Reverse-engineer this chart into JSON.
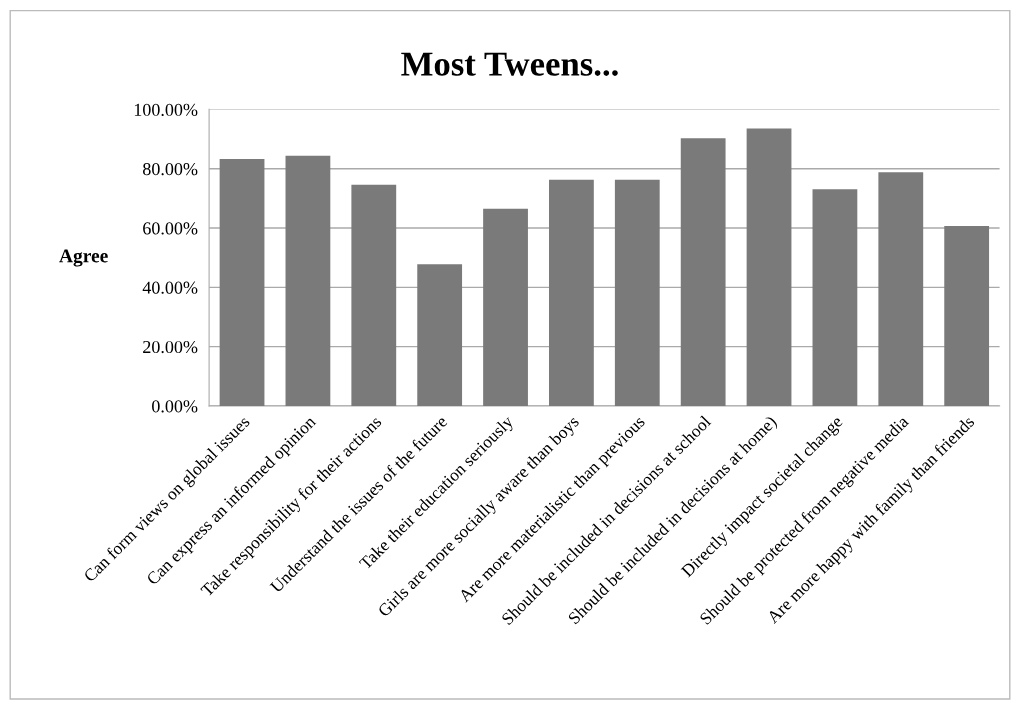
{
  "chart_data": {
    "type": "bar",
    "title": "Most Tweens...",
    "ylabel": "Agree",
    "categories": [
      "Can form views on global issues",
      "Can express an informed opinion",
      "Take responsibility for their actions",
      "Understand the issues of the future",
      "Take their education seriously",
      "Girls are more socially aware than boys",
      "Are more materialistic than previous",
      "Should be included in decisions at school",
      "Should be included in decisions at home)",
      "Directly impact societal change",
      "Should be protected from negative media",
      "Are more happy with family than friends"
    ],
    "values": [
      83.3,
      84.4,
      74.6,
      47.8,
      66.5,
      76.3,
      76.3,
      90.3,
      93.6,
      73.1,
      78.8,
      60.7
    ],
    "color": "#7a7a7a",
    "ylim": [
      0,
      100
    ],
    "yticks": [
      {
        "value": 0,
        "label": "0.00%"
      },
      {
        "value": 20,
        "label": "20.00%"
      },
      {
        "value": 40,
        "label": "40.00%"
      },
      {
        "value": 60,
        "label": "60.00%"
      },
      {
        "value": 80,
        "label": "80.00%"
      },
      {
        "value": 100,
        "label": "100.00%"
      }
    ],
    "grid": "y"
  }
}
